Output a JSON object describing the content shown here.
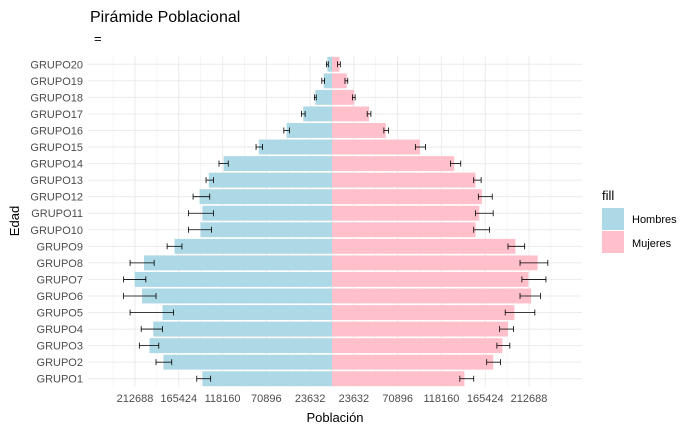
{
  "chart_data": {
    "type": "bar",
    "orientation": "horizontal",
    "title": "Pirámide Poblacional",
    "subtitle": "=",
    "xlabel": "Población",
    "ylabel": "Edad",
    "legend": {
      "title": "fill",
      "position": "right"
    },
    "categories": [
      "GRUPO1",
      "GRUPO2",
      "GRUPO3",
      "GRUPO4",
      "GRUPO5",
      "GRUPO6",
      "GRUPO7",
      "GRUPO8",
      "GRUPO9",
      "GRUPO10",
      "GRUPO11",
      "GRUPO12",
      "GRUPO13",
      "GRUPO14",
      "GRUPO15",
      "GRUPO16",
      "GRUPO17",
      "GRUPO18",
      "GRUPO19",
      "GRUPO20"
    ],
    "x_tick_labels": [
      "212688",
      "165424",
      "118160",
      "70896",
      "23632",
      "23632",
      "70896",
      "118160",
      "165424",
      "212688"
    ],
    "x_tick_values": [
      -212688,
      -165424,
      -118160,
      -70896,
      -23632,
      23632,
      70896,
      118160,
      165424,
      212688
    ],
    "xlim": [
      -236320,
      236320
    ],
    "grid": true,
    "series": [
      {
        "name": "Hombres",
        "color": "#ADD8E6",
        "values": [
          -140000,
          -182000,
          -197000,
          -193000,
          -183000,
          -205000,
          -213000,
          -203000,
          -170000,
          -142000,
          -140000,
          -143000,
          -133000,
          -117000,
          -79000,
          -49000,
          -31000,
          -18000,
          -9000,
          -5000
        ],
        "err_low": [
          -146000,
          -190000,
          -208000,
          -206000,
          -218000,
          -225000,
          -225000,
          -218000,
          -178000,
          -155000,
          -155000,
          -150000,
          -136000,
          -122000,
          -82000,
          -52000,
          -33000,
          -19000,
          -11000,
          -6000
        ],
        "err_high": [
          -131000,
          -173000,
          -187000,
          -183000,
          -171000,
          -190000,
          -201000,
          -192000,
          -162000,
          -130000,
          -128000,
          -132000,
          -128000,
          -112000,
          -75000,
          -46000,
          -29000,
          -17000,
          -8000,
          -4000
        ]
      },
      {
        "name": "Mujeres",
        "color": "#FFC0CB",
        "values": [
          143000,
          174000,
          184000,
          190000,
          197000,
          215000,
          212000,
          222000,
          198000,
          155000,
          159000,
          162000,
          155000,
          132000,
          95000,
          58000,
          40000,
          24000,
          16000,
          8000
        ],
        "err_low": [
          138000,
          167000,
          178000,
          181000,
          187000,
          203000,
          205000,
          203000,
          190000,
          153000,
          155000,
          158000,
          153000,
          128000,
          90000,
          56000,
          38000,
          22000,
          14000,
          6000
        ],
        "err_high": [
          153000,
          182000,
          192000,
          196000,
          219000,
          225000,
          231000,
          233000,
          208000,
          170000,
          174000,
          173000,
          161000,
          139000,
          101000,
          61000,
          42000,
          25000,
          17000,
          9000
        ]
      }
    ]
  }
}
